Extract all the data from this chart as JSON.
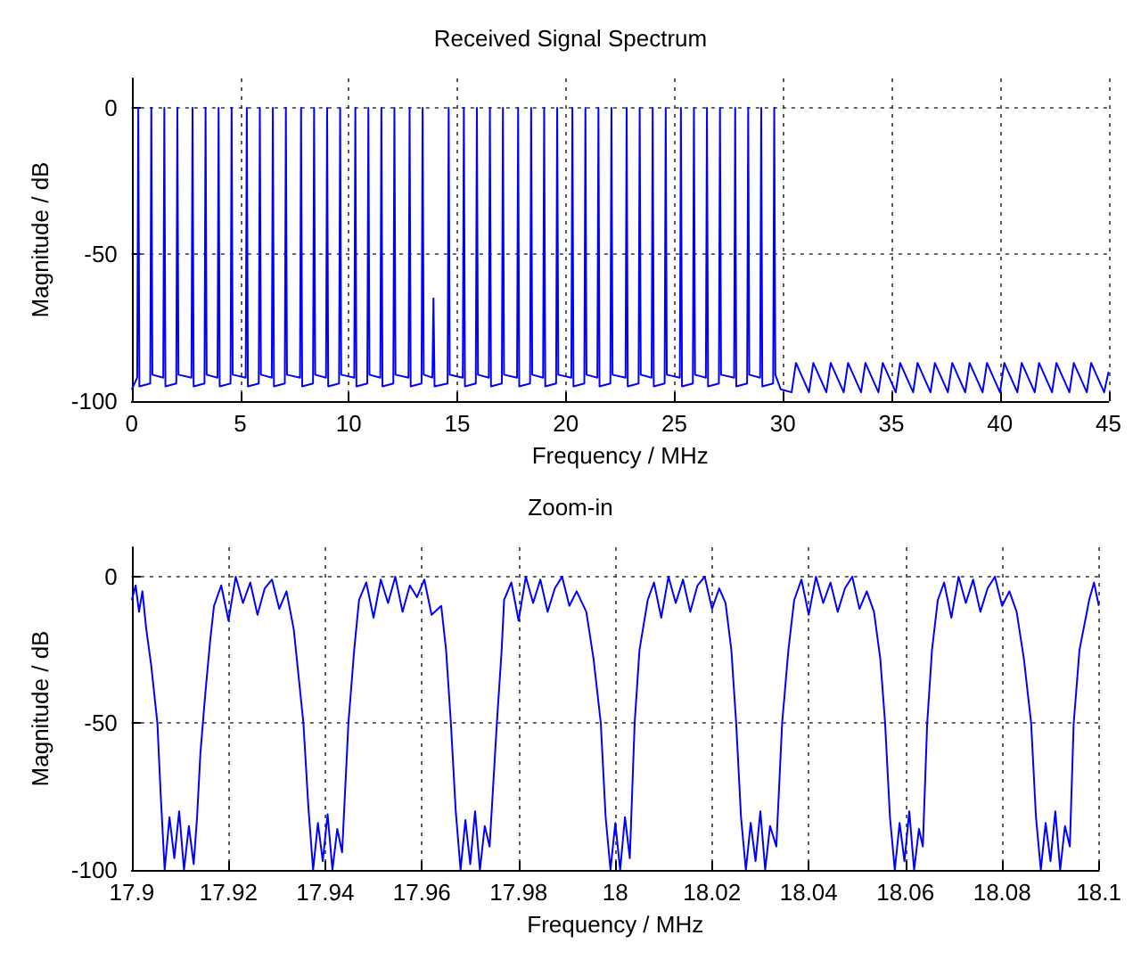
{
  "chart_data": [
    {
      "type": "line",
      "title": "Received Signal Spectrum",
      "xlabel": "Frequency / MHz",
      "ylabel": "Magnitude / dB",
      "xlim": [
        0,
        45
      ],
      "xticks": [
        0,
        5,
        10,
        15,
        20,
        25,
        30,
        35,
        40,
        45
      ],
      "ylim": [
        -100,
        10
      ],
      "yticks": [
        -100,
        -50,
        0
      ],
      "grid": true,
      "marker": "none",
      "line_style": "solid",
      "x": [
        0,
        0.25,
        0.3,
        0.35,
        0.85,
        0.9,
        0.95,
        1.45,
        1.5,
        1.55,
        2.05,
        2.1,
        2.15,
        2.75,
        2.8,
        2.85,
        3.35,
        3.4,
        3.45,
        3.95,
        4.0,
        4.05,
        4.55,
        4.6,
        4.65,
        5.25,
        5.3,
        5.35,
        5.85,
        5.9,
        5.95,
        6.45,
        6.5,
        6.55,
        7.05,
        7.1,
        7.15,
        7.75,
        7.8,
        7.85,
        8.35,
        8.4,
        8.45,
        8.95,
        9.0,
        9.05,
        9.55,
        9.6,
        9.65,
        10.25,
        10.3,
        10.35,
        10.85,
        10.9,
        10.95,
        11.45,
        11.5,
        11.55,
        12.05,
        12.1,
        12.15,
        12.75,
        12.8,
        12.85,
        13.35,
        13.4,
        13.45,
        13.85,
        13.9,
        13.95,
        14.55,
        14.6,
        14.65,
        15.25,
        15.3,
        15.35,
        15.85,
        15.9,
        15.95,
        16.45,
        16.5,
        16.55,
        17.05,
        17.1,
        17.15,
        17.75,
        17.8,
        17.85,
        18.35,
        18.4,
        18.45,
        18.95,
        19.0,
        19.05,
        19.55,
        19.6,
        19.65,
        20.25,
        20.3,
        20.35,
        20.85,
        20.9,
        20.95,
        21.45,
        21.5,
        21.55,
        22.05,
        22.1,
        22.15,
        22.75,
        22.8,
        22.85,
        23.35,
        23.4,
        23.45,
        23.95,
        24.0,
        24.05,
        24.55,
        24.6,
        24.65,
        25.25,
        25.3,
        25.35,
        25.85,
        25.9,
        25.95,
        26.45,
        26.5,
        26.55,
        27.05,
        27.1,
        27.15,
        27.75,
        27.8,
        27.85,
        28.35,
        28.4,
        28.45,
        28.95,
        29.0,
        29.05,
        29.55,
        29.6,
        29.65,
        29.9,
        30.4,
        30.6,
        31.2,
        31.4,
        32.0,
        32.2,
        32.8,
        33.0,
        33.6,
        33.8,
        34.4,
        34.6,
        35.2,
        35.4,
        36.0,
        36.2,
        36.8,
        37.0,
        37.6,
        37.8,
        38.4,
        38.6,
        39.2,
        39.4,
        40.0,
        40.2,
        40.8,
        41.0,
        41.6,
        41.8,
        42.4,
        42.6,
        43.2,
        43.4,
        44.0,
        44.2,
        44.8,
        45
      ],
      "series": [
        {
          "color": "#0000ff",
          "values": [
            -96,
            -92,
            0,
            -95,
            -94,
            0,
            -91,
            -92,
            0,
            -95,
            -94,
            0,
            -91,
            -92,
            0,
            -95,
            -94,
            0,
            -91,
            -92,
            0,
            -95,
            -94,
            0,
            -91,
            -92,
            0,
            -95,
            -94,
            0,
            -91,
            -92,
            0,
            -95,
            -94,
            0,
            -91,
            -92,
            0,
            -95,
            -94,
            0,
            -91,
            -92,
            0,
            -95,
            -94,
            0,
            -91,
            -92,
            0,
            -95,
            -94,
            0,
            -91,
            -92,
            0,
            -95,
            -94,
            0,
            -91,
            -92,
            0,
            -95,
            -94,
            0,
            -91,
            -92,
            -65,
            -95,
            -94,
            0,
            -91,
            -92,
            0,
            -95,
            -94,
            0,
            -91,
            -92,
            0,
            -95,
            -94,
            0,
            -91,
            -92,
            0,
            -95,
            -94,
            0,
            -91,
            -92,
            0,
            -95,
            -94,
            0,
            -91,
            -92,
            0,
            -95,
            -94,
            0,
            -91,
            -92,
            0,
            -95,
            -94,
            0,
            -91,
            -92,
            0,
            -95,
            -94,
            0,
            -91,
            -92,
            0,
            -95,
            -94,
            0,
            -91,
            -92,
            0,
            -95,
            -94,
            0,
            -91,
            -92,
            0,
            -95,
            -94,
            0,
            -91,
            -92,
            0,
            -95,
            -94,
            0,
            -91,
            -92,
            0,
            -95,
            -94,
            0,
            -91,
            -96,
            -97,
            -87,
            -97,
            -87,
            -97,
            -87,
            -97,
            -87,
            -97,
            -87,
            -97,
            -87,
            -97,
            -87,
            -97,
            -87,
            -97,
            -87,
            -97,
            -87,
            -97,
            -87,
            -97,
            -87,
            -97,
            -87,
            -97,
            -87,
            -97,
            -87,
            -97,
            -87,
            -97,
            -87,
            -97,
            -87,
            -97,
            -90
          ]
        }
      ]
    },
    {
      "type": "line",
      "title": "Zoom-in",
      "xlabel": "Frequency / MHz",
      "ylabel": "Magnitude / dB",
      "xlim": [
        17.9,
        18.1
      ],
      "xticks": [
        17.9,
        17.92,
        17.94,
        17.96,
        17.98,
        18,
        18.02,
        18.04,
        18.06,
        18.08,
        18.1
      ],
      "ylim": [
        -100,
        10
      ],
      "yticks": [
        -100,
        -50,
        0
      ],
      "grid": true,
      "marker": "none",
      "line_style": "solid",
      "x": [
        17.9,
        17.9008,
        17.9015,
        17.9022,
        17.903,
        17.904,
        17.9053,
        17.906,
        17.9068,
        17.9078,
        17.9088,
        17.9098,
        17.9108,
        17.9118,
        17.9128,
        17.9135,
        17.9142,
        17.9152,
        17.9162,
        17.917,
        17.9185,
        17.92,
        17.9215,
        17.923,
        17.9245,
        17.926,
        17.9275,
        17.929,
        17.9305,
        17.932,
        17.9335,
        17.9355,
        17.9365,
        17.9375,
        17.9385,
        17.9395,
        17.9405,
        17.9415,
        17.9425,
        17.9435,
        17.9448,
        17.946,
        17.947,
        17.9485,
        17.95,
        17.9515,
        17.953,
        17.9545,
        17.956,
        17.9575,
        17.959,
        17.9605,
        17.962,
        17.964,
        17.965,
        17.966,
        17.967,
        17.968,
        17.969,
        17.97,
        17.971,
        17.972,
        17.973,
        17.974,
        17.9755,
        17.9765,
        17.977,
        17.9785,
        17.98,
        17.9815,
        17.983,
        17.9845,
        17.986,
        17.9875,
        17.989,
        17.9905,
        17.992,
        17.994,
        17.9955,
        17.997,
        17.998,
        17.999,
        18.0,
        18.001,
        18.002,
        18.003,
        18.004,
        18.005,
        18.0067,
        18.008,
        18.0095,
        18.011,
        18.0125,
        18.014,
        18.0155,
        18.017,
        18.0185,
        18.02,
        18.0215,
        18.0228,
        18.024,
        18.025,
        18.026,
        18.027,
        18.028,
        18.029,
        18.03,
        18.031,
        18.032,
        18.0333,
        18.0345,
        18.0358,
        18.037,
        18.0385,
        18.04,
        18.0415,
        18.043,
        18.0445,
        18.046,
        18.0475,
        18.049,
        18.0505,
        18.052,
        18.0535,
        18.0548,
        18.0558,
        18.0568,
        18.0578,
        18.0588,
        18.0598,
        18.0608,
        18.0618,
        18.0628,
        18.0636,
        18.0645,
        18.0655,
        18.0667,
        18.068,
        18.0695,
        18.071,
        18.0725,
        18.074,
        18.0755,
        18.077,
        18.0785,
        18.08,
        18.0815,
        18.083,
        18.0845,
        18.086,
        18.087,
        18.088,
        18.089,
        18.09,
        18.091,
        18.092,
        18.093,
        18.094,
        18.0948,
        18.096,
        18.098,
        18.099,
        18.1
      ],
      "series": [
        {
          "color": "#0000ff",
          "values": [
            -8,
            -3,
            -12,
            -5,
            -18,
            -30,
            -50,
            -75,
            -100,
            -82,
            -96,
            -80,
            -100,
            -85,
            -98,
            -82,
            -60,
            -40,
            -22,
            -10,
            -3,
            -15,
            0,
            -9,
            -2,
            -13,
            -4,
            -1,
            -11,
            -5,
            -18,
            -50,
            -78,
            -100,
            -84,
            -97,
            -81,
            -100,
            -86,
            -94,
            -50,
            -25,
            -8,
            -2,
            -14,
            -1,
            -9,
            0,
            -12,
            -3,
            -7,
            -1,
            -13,
            -10,
            -25,
            -50,
            -80,
            -100,
            -83,
            -98,
            -80,
            -100,
            -85,
            -92,
            -50,
            -25,
            -8,
            -2,
            -15,
            0,
            -9,
            -1,
            -12,
            -4,
            0,
            -10,
            -5,
            -12,
            -28,
            -50,
            -82,
            -100,
            -84,
            -100,
            -82,
            -96,
            -50,
            -25,
            -8,
            -2,
            -14,
            0,
            -9,
            -1,
            -12,
            -3,
            0,
            -11,
            -4,
            -9,
            -25,
            -50,
            -82,
            -100,
            -84,
            -97,
            -80,
            -100,
            -85,
            -92,
            -50,
            -25,
            -8,
            -1,
            -13,
            0,
            -9,
            -2,
            -12,
            -4,
            0,
            -11,
            -5,
            -12,
            -28,
            -50,
            -82,
            -100,
            -84,
            -97,
            -80,
            -100,
            -86,
            -92,
            -50,
            -25,
            -8,
            -2,
            -14,
            0,
            -9,
            -1,
            -12,
            -4,
            0,
            -10,
            -5,
            -12,
            -28,
            -50,
            -82,
            -100,
            -84,
            -97,
            -80,
            -100,
            -85,
            -92,
            -50,
            -25,
            -8,
            -2,
            -10
          ]
        }
      ]
    }
  ]
}
